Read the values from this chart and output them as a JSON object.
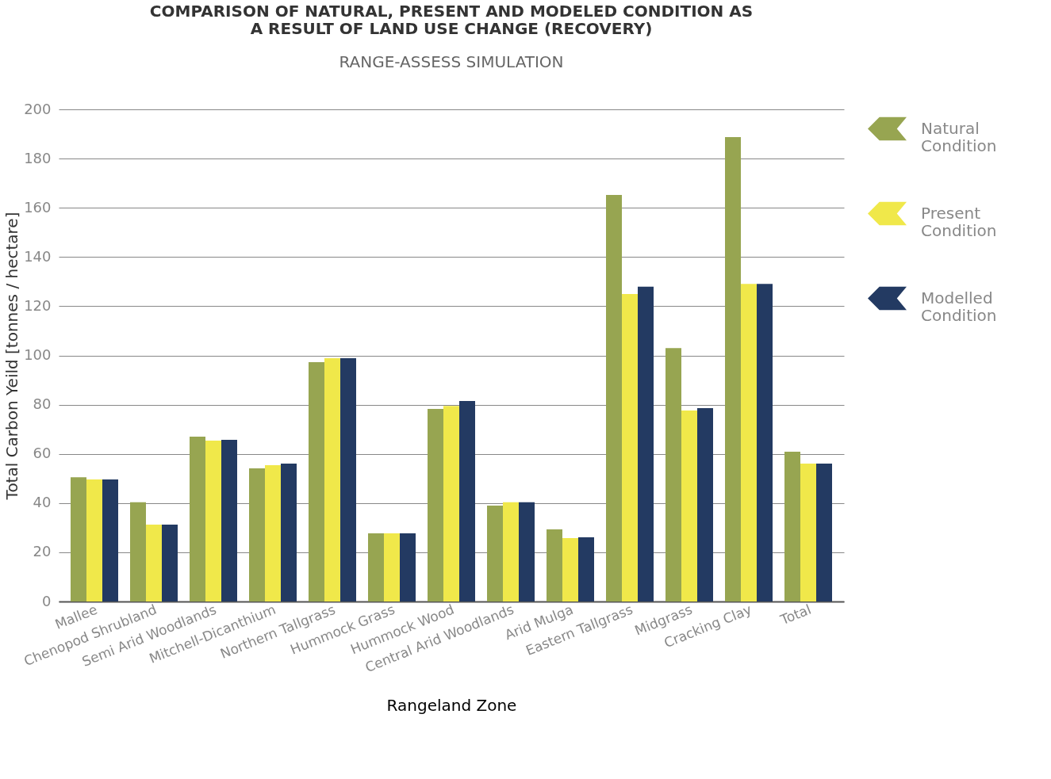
{
  "chart_data": {
    "type": "bar",
    "title": "COMPARISON OF NATURAL, PRESENT AND MODELED CONDITION AS A RESULT OF LAND USE CHANGE (RECOVERY)",
    "subtitle": "RANGE-ASSESS SIMULATION",
    "xlabel": "Rangeland Zone",
    "ylabel": "Total Carbon Yeild  [tonnes / hectare]",
    "categories": [
      "Mallee",
      "Chenopod Shrubland",
      "Semi Arid Woodlands",
      "Mitchell-Dicanthium",
      "Northern Tallgrass",
      "Hummock Grass",
      "Hummock Wood",
      "Central Arid Woodlands",
      "Arid Mulga",
      "Eastern Tallgrass",
      "Midgrass",
      "Cracking Clay",
      "Total"
    ],
    "series": [
      {
        "name": "Natural Condition",
        "color": "#97a551",
        "values": [
          50.5,
          40.3,
          67,
          54.1,
          97.3,
          27.7,
          78.3,
          39,
          29.3,
          165.2,
          103,
          188.7,
          60.9
        ]
      },
      {
        "name": "Present Condition",
        "color": "#f0e84a",
        "values": [
          49.6,
          31.2,
          65.4,
          55.4,
          98.9,
          27.7,
          79.5,
          40.3,
          25.8,
          125,
          77.6,
          129.1,
          56
        ]
      },
      {
        "name": "Modelled Condition",
        "color": "#233a62",
        "values": [
          49.6,
          31.2,
          65.7,
          56,
          98.9,
          27.7,
          81.5,
          40.3,
          26.1,
          127.9,
          78.6,
          129.1,
          56
        ]
      }
    ],
    "ylim": [
      0,
      200
    ],
    "yticks": [
      0,
      20,
      40,
      60,
      80,
      100,
      120,
      140,
      160,
      180,
      200
    ],
    "grid": "y",
    "legend": "right"
  }
}
